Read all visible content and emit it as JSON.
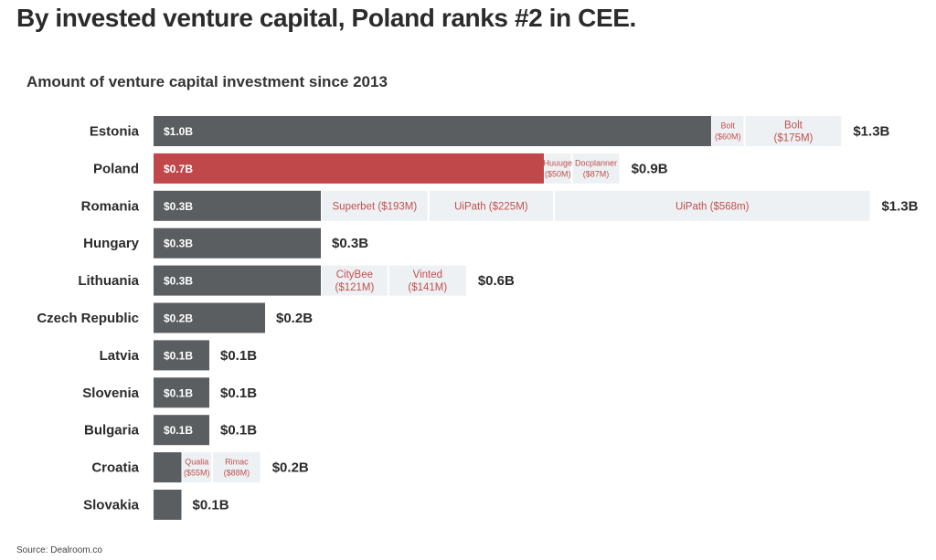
{
  "header": {
    "title": "By invested venture capital, Poland ranks #2 in CEE.",
    "subtitle": "Amount of venture capital investment since 2013",
    "source": "Source: Dealroom.co"
  },
  "colors": {
    "base_bar": "#5a5e61",
    "highlight_bar": "#c0474a",
    "deal_segment": "#eef1f4",
    "deal_text": "#c0504d",
    "label_text": "#2b2b2b"
  },
  "chart_data": {
    "type": "bar",
    "orientation": "horizontal",
    "stacked": true,
    "title": "Amount of venture capital investment since 2013",
    "xlabel": "",
    "ylabel": "",
    "unit": "USD billions",
    "xlim": [
      0,
      1.4
    ],
    "grid": false,
    "legend": "none",
    "highlight": "Poland",
    "categories": [
      "Estonia",
      "Poland",
      "Romania",
      "Hungary",
      "Lithuania",
      "Czech Republic",
      "Latvia",
      "Slovenia",
      "Bulgaria",
      "Croatia",
      "Slovakia"
    ],
    "rows": [
      {
        "country": "Estonia",
        "base": 1.0,
        "base_label": "$1.0B",
        "total_label": "$1.3B",
        "deals": [
          {
            "name": "Bolt",
            "amount_label": "($60M)",
            "value": 0.06
          },
          {
            "name": "Bolt",
            "amount_label": "($175M)",
            "value": 0.175
          }
        ]
      },
      {
        "country": "Poland",
        "base": 0.7,
        "base_label": "$0.7B",
        "total_label": "$0.9B",
        "deals": [
          {
            "name": "Huuuge",
            "amount_label": "($50M)",
            "value": 0.05
          },
          {
            "name": "Docplanner",
            "amount_label": "($87M)",
            "value": 0.087
          }
        ]
      },
      {
        "country": "Romania",
        "base": 0.3,
        "base_label": "$0.3B",
        "total_label": "$1.3B",
        "deals": [
          {
            "name": "Superbet ($193M)",
            "amount_label": "",
            "value": 0.193
          },
          {
            "name": "UiPath ($225M)",
            "amount_label": "",
            "value": 0.225
          },
          {
            "name": "UiPath ($568m)",
            "amount_label": "",
            "value": 0.568
          }
        ]
      },
      {
        "country": "Hungary",
        "base": 0.3,
        "base_label": "$0.3B",
        "total_label": "$0.3B",
        "deals": []
      },
      {
        "country": "Lithuania",
        "base": 0.3,
        "base_label": "$0.3B",
        "total_label": "$0.6B",
        "deals": [
          {
            "name": "CityBee",
            "amount_label": "($121M)",
            "value": 0.121
          },
          {
            "name": "Vinted",
            "amount_label": "($141M)",
            "value": 0.141
          }
        ]
      },
      {
        "country": "Czech Republic",
        "base": 0.2,
        "base_label": "$0.2B",
        "total_label": "$0.2B",
        "deals": []
      },
      {
        "country": "Latvia",
        "base": 0.1,
        "base_label": "$0.1B",
        "total_label": "$0.1B",
        "deals": []
      },
      {
        "country": "Slovenia",
        "base": 0.1,
        "base_label": "$0.1B",
        "total_label": "$0.1B",
        "deals": []
      },
      {
        "country": "Bulgaria",
        "base": 0.1,
        "base_label": "$0.1B",
        "total_label": "$0.1B",
        "deals": []
      },
      {
        "country": "Croatia",
        "base": 0.05,
        "base_label": "",
        "total_label": "$0.2B",
        "deals": [
          {
            "name": "Qualia",
            "amount_label": "($55M)",
            "value": 0.055
          },
          {
            "name": "Rimac",
            "amount_label": "($88M)",
            "value": 0.088
          }
        ]
      },
      {
        "country": "Slovakia",
        "base": 0.05,
        "base_label": "",
        "total_label": "$0.1B",
        "deals": []
      }
    ]
  }
}
